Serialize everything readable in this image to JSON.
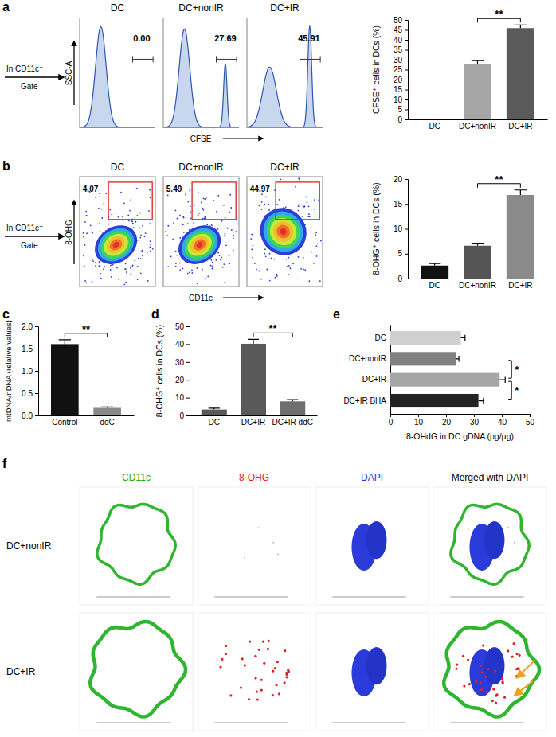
{
  "panels": [
    "a",
    "b",
    "c",
    "d",
    "e",
    "f"
  ],
  "flow_a": {
    "gate_label": [
      "In CD11c⁺",
      "Gate"
    ],
    "y_label": "SSC-A",
    "x_label": "CFSE",
    "plots": [
      {
        "title": "DC",
        "percent": "0.00"
      },
      {
        "title": "DC+nonIR",
        "percent": "27.69"
      },
      {
        "title": "DC+IR",
        "percent": "45.91"
      }
    ]
  },
  "flow_b": {
    "gate_label": [
      "In CD11c⁺",
      "Gate"
    ],
    "y_label": "8-OHG",
    "x_label": "CD11c",
    "plots": [
      {
        "title": "DC",
        "percent": "4.07"
      },
      {
        "title": "DC+nonIR",
        "percent": "5.49"
      },
      {
        "title": "DC+IR",
        "percent": "44.97"
      }
    ]
  },
  "chart_data": [
    {
      "type": "bar",
      "y_label": "CFSE⁺ cells in DCs (%)",
      "categories": [
        "DC",
        "DC+nonIR",
        "DC+IR"
      ],
      "values": [
        0,
        27.7,
        45.9
      ],
      "errors": [
        0,
        1.8,
        1.6
      ],
      "colors": [
        "#d9d9d9",
        "#a6a6a6",
        "#5a5a5a"
      ],
      "ylim": [
        0,
        50
      ],
      "yticks": [
        0,
        5,
        10,
        15,
        20,
        25,
        30,
        35,
        40,
        45,
        50
      ],
      "significance": [
        {
          "label": "**",
          "from": "DC+nonIR",
          "to": "DC+IR"
        }
      ]
    },
    {
      "type": "bar",
      "y_label": "8-OHG⁺ cells in DCs (%)",
      "categories": [
        "DC",
        "DC+nonIR",
        "DC+IR"
      ],
      "values": [
        2.6,
        6.6,
        16.8
      ],
      "errors": [
        0.4,
        0.5,
        1.0
      ],
      "colors": [
        "#111111",
        "#555555",
        "#8a8a8a"
      ],
      "ylim": [
        0,
        20
      ],
      "yticks": [
        0,
        5,
        10,
        15,
        20
      ],
      "significance": [
        {
          "label": "**",
          "from": "DC+nonIR",
          "to": "DC+IR"
        }
      ]
    },
    {
      "type": "bar",
      "y_label": "mtDNA/nDNA (relative values)",
      "categories": [
        "Control",
        "ddC"
      ],
      "values": [
        1.6,
        0.17
      ],
      "errors": [
        0.1,
        0.02
      ],
      "colors": [
        "#111111",
        "#8a8a8a"
      ],
      "ylim": [
        0,
        2
      ],
      "yticks": [
        {
          "value": 0,
          "label": "0.0"
        },
        {
          "value": 0.5,
          "label": "0.5"
        },
        {
          "value": 1,
          "label": "1.0"
        },
        {
          "value": 1.5,
          "label": "1.5"
        },
        {
          "value": 2,
          "label": "2.0"
        }
      ],
      "significance": [
        {
          "label": "**",
          "from": "Control",
          "to": "ddC"
        }
      ]
    },
    {
      "type": "bar",
      "y_label": "8-OHG⁺ cells in DCs (%)",
      "categories": [
        "DC",
        "DC+IR",
        "DC+IR ddC"
      ],
      "values": [
        3.3,
        40.2,
        7.9
      ],
      "errors": [
        0.8,
        2.5,
        1.0
      ],
      "colors": [
        "#595959",
        "#595959",
        "#6e6e6e"
      ],
      "ylim": [
        0,
        50
      ],
      "yticks": [
        0,
        10,
        20,
        30,
        40,
        50
      ],
      "significance": [
        {
          "label": "**",
          "from": "DC+IR",
          "to": "DC+IR ddC"
        }
      ]
    },
    {
      "type": "bar",
      "orientation": "horizontal",
      "x_label": "8-OHdG in DC gDNA (pg/μg)",
      "categories": [
        "DC",
        "DC+nonIR",
        "DC+IR",
        "DC+IR BHA"
      ],
      "values": [
        25.3,
        23.6,
        39.2,
        31.6
      ],
      "errors": [
        1.5,
        1.0,
        2.0,
        1.8
      ],
      "colors": [
        "#cfcfcf",
        "#808080",
        "#a6a6a6",
        "#222222"
      ],
      "xlim": [
        0,
        50
      ],
      "xticks": [
        0,
        10,
        20,
        30,
        40,
        50
      ],
      "significance": [
        {
          "label": "*",
          "from": "DC+nonIR",
          "to": "DC+IR"
        },
        {
          "label": "*",
          "from": "DC+IR",
          "to": "DC+IR BHA"
        }
      ]
    }
  ],
  "microscopy": {
    "columns": [
      "CD11c",
      "8-OHG",
      "DAPI",
      "Merged with DAPI"
    ],
    "rows": [
      "DC+nonIR",
      "DC+IR"
    ]
  }
}
